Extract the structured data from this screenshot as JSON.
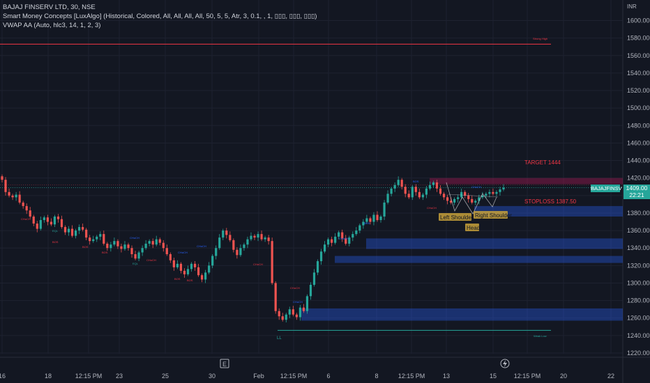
{
  "header": {
    "symbol_line": "BAJAJ FINSERV LTD, 30, NSE",
    "indicator_1": "Smart Money Concepts [LuxAlgo] (Historical, Colored, All, All, All, All, 50, 5, 5, Atr, 3, 0.1, , 1, ▯▯▯, ▯▯▯, ▯▯▯)",
    "indicator_2": "VWAP AA (Auto, hlc3, 14, 1, 2, 3)"
  },
  "price_scale": {
    "currency": "INR"
  },
  "price_badge": {
    "symbol": "BAJAJFINSV",
    "price": "1409.00",
    "countdown": "22:21",
    "color": "#26a69a"
  },
  "annotations": {
    "target": "TARGET 1444",
    "stoploss": "STOPLOSS 1387.50",
    "left_shoulder": "Left Shoulder",
    "head": "Head",
    "right_shoulder": "Right Shoulder",
    "strong_high": "Strong High",
    "weak_low": "Weak Low",
    "ll": "LL",
    "choch": "CHoCH",
    "bos": "BOS",
    "eql": "EQL"
  },
  "icons": {
    "e_marker": "E",
    "flash": "flash-icon"
  },
  "chart_data": {
    "type": "candlestick",
    "ylim": [
      1210,
      1640
    ],
    "y_ticks": [
      "1600.00",
      "1580.00",
      "1560.00",
      "1540.00",
      "1520.00",
      "1500.00",
      "1480.00",
      "1460.00",
      "1440.00",
      "1420.00",
      "1400.00",
      "1380.00",
      "1360.00",
      "1340.00",
      "1320.00",
      "1300.00",
      "1280.00",
      "1260.00",
      "1240.00",
      "1220.00"
    ],
    "x_ticks": [
      "16",
      "18",
      "12:15 PM",
      "23",
      "25",
      "30",
      "Feb",
      "12:15 PM",
      "6",
      "8",
      "12:15 PM",
      "13",
      "15",
      "12:15 PM",
      "20",
      "22"
    ],
    "levels": {
      "strong_high": 1573,
      "current_price": 1409,
      "dotted_resistance": 1412,
      "weak_low": 1246
    },
    "zones": [
      {
        "from": 1376,
        "to": 1388,
        "color": "#2962ff"
      },
      {
        "from": 1339,
        "to": 1351,
        "color": "#2962ff"
      },
      {
        "from": 1323,
        "to": 1331,
        "color": "#2962ff"
      },
      {
        "from": 1257,
        "to": 1271,
        "color": "#2962ff"
      },
      {
        "from": 1413,
        "to": 1420,
        "color": "#c2185b"
      }
    ],
    "colors": {
      "up": "#26a69a",
      "down": "#ef5350"
    },
    "closes": [
      1418,
      1404,
      1400,
      1398,
      1401,
      1392,
      1388,
      1383,
      1376,
      1368,
      1362,
      1372,
      1375,
      1370,
      1367,
      1376,
      1373,
      1364,
      1358,
      1362,
      1354,
      1360,
      1364,
      1361,
      1352,
      1348,
      1350,
      1353,
      1356,
      1345,
      1340,
      1344,
      1348,
      1342,
      1339,
      1344,
      1340,
      1333,
      1328,
      1335,
      1340,
      1345,
      1348,
      1344,
      1350,
      1346,
      1340,
      1333,
      1326,
      1318,
      1322,
      1314,
      1310,
      1316,
      1322,
      1318,
      1309,
      1304,
      1312,
      1320,
      1331,
      1340,
      1352,
      1360,
      1355,
      1349,
      1338,
      1332,
      1340,
      1344,
      1350,
      1354,
      1352,
      1356,
      1350,
      1352,
      1348,
      1300,
      1268,
      1262,
      1258,
      1264,
      1270,
      1264,
      1261,
      1272,
      1268,
      1285,
      1298,
      1312,
      1325,
      1336,
      1344,
      1350,
      1346,
      1353,
      1358,
      1351,
      1345,
      1352,
      1356,
      1360,
      1366,
      1370,
      1374,
      1370,
      1378,
      1372,
      1376,
      1392,
      1402,
      1408,
      1412,
      1418,
      1410,
      1402,
      1398,
      1410,
      1404,
      1398,
      1401,
      1408,
      1412,
      1415,
      1408,
      1402,
      1398,
      1394,
      1392,
      1396,
      1398,
      1404,
      1400,
      1396,
      1392,
      1394,
      1398,
      1400,
      1402,
      1404,
      1402,
      1404,
      1407,
      1409
    ]
  }
}
